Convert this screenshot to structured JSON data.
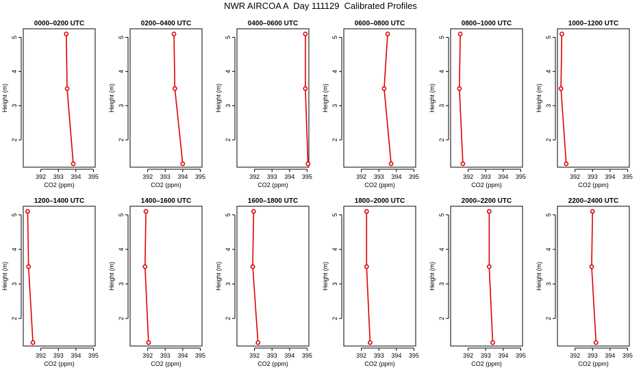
{
  "title": "NWR AIRCOA A  Day 111129  Calibrated Profiles",
  "colors": {
    "series": "#dd0000",
    "axis": "#000000",
    "background": "#ffffff"
  },
  "chart_data": [
    {
      "type": "line",
      "title": "0000–0200 UTC",
      "xlabel": "CO2 (ppm)",
      "ylabel": "Height (m)",
      "xlim": [
        391.0,
        395.1
      ],
      "ylim": [
        1.2,
        5.25
      ],
      "xticks": [
        392,
        393,
        394,
        395
      ],
      "yticks": [
        2,
        3,
        4,
        5
      ],
      "x": [
        393.45,
        393.5,
        393.85
      ],
      "y": [
        5.1,
        3.5,
        1.3
      ]
    },
    {
      "type": "line",
      "title": "0200–0400 UTC",
      "xlabel": "CO2 (ppm)",
      "ylabel": "Height (m)",
      "xlim": [
        391.0,
        395.1
      ],
      "ylim": [
        1.2,
        5.25
      ],
      "xticks": [
        392,
        393,
        394,
        395
      ],
      "yticks": [
        2,
        3,
        4,
        5
      ],
      "x": [
        393.5,
        393.55,
        394.0
      ],
      "y": [
        5.1,
        3.5,
        1.3
      ]
    },
    {
      "type": "line",
      "title": "0400–0600 UTC",
      "xlabel": "CO2 (ppm)",
      "ylabel": "Height (m)",
      "xlim": [
        391.0,
        395.1
      ],
      "ylim": [
        1.2,
        5.25
      ],
      "xticks": [
        392,
        393,
        394,
        395
      ],
      "yticks": [
        2,
        3,
        4,
        5
      ],
      "x": [
        394.9,
        394.9,
        395.05
      ],
      "y": [
        5.1,
        3.5,
        1.3
      ]
    },
    {
      "type": "line",
      "title": "0600–0800 UTC",
      "xlabel": "CO2 (ppm)",
      "ylabel": "Height (m)",
      "xlim": [
        391.0,
        395.1
      ],
      "ylim": [
        1.2,
        5.25
      ],
      "xticks": [
        392,
        393,
        394,
        395
      ],
      "yticks": [
        2,
        3,
        4,
        5
      ],
      "x": [
        393.5,
        393.3,
        393.7
      ],
      "y": [
        5.1,
        3.5,
        1.3
      ]
    },
    {
      "type": "line",
      "title": "0800–1000 UTC",
      "xlabel": "CO2 (ppm)",
      "ylabel": "Height (m)",
      "xlim": [
        391.0,
        395.1
      ],
      "ylim": [
        1.2,
        5.25
      ],
      "xticks": [
        392,
        393,
        394,
        395
      ],
      "yticks": [
        2,
        3,
        4,
        5
      ],
      "x": [
        391.55,
        391.5,
        391.7
      ],
      "y": [
        5.1,
        3.5,
        1.3
      ]
    },
    {
      "type": "line",
      "title": "1000–1200 UTC",
      "xlabel": "CO2 (ppm)",
      "ylabel": "Height (m)",
      "xlim": [
        391.0,
        395.1
      ],
      "ylim": [
        1.2,
        5.25
      ],
      "xticks": [
        392,
        393,
        394,
        395
      ],
      "yticks": [
        2,
        3,
        4,
        5
      ],
      "x": [
        391.25,
        391.2,
        391.5
      ],
      "y": [
        5.1,
        3.5,
        1.3
      ]
    },
    {
      "type": "line",
      "title": "1200–1400 UTC",
      "xlabel": "CO2 (ppm)",
      "ylabel": "Height (m)",
      "xlim": [
        391.0,
        395.1
      ],
      "ylim": [
        1.2,
        5.25
      ],
      "xticks": [
        392,
        393,
        394,
        395
      ],
      "yticks": [
        2,
        3,
        4,
        5
      ],
      "x": [
        391.25,
        391.3,
        391.55
      ],
      "y": [
        5.1,
        3.5,
        1.3
      ]
    },
    {
      "type": "line",
      "title": "1400–1600 UTC",
      "xlabel": "CO2 (ppm)",
      "ylabel": "Height (m)",
      "xlim": [
        391.0,
        395.1
      ],
      "ylim": [
        1.2,
        5.25
      ],
      "xticks": [
        392,
        393,
        394,
        395
      ],
      "yticks": [
        2,
        3,
        4,
        5
      ],
      "x": [
        391.9,
        391.85,
        392.05
      ],
      "y": [
        5.1,
        3.5,
        1.3
      ]
    },
    {
      "type": "line",
      "title": "1600–1800 UTC",
      "xlabel": "CO2 (ppm)",
      "ylabel": "Height (m)",
      "xlim": [
        391.0,
        395.1
      ],
      "ylim": [
        1.2,
        5.25
      ],
      "xticks": [
        392,
        393,
        394,
        395
      ],
      "yticks": [
        2,
        3,
        4,
        5
      ],
      "x": [
        391.95,
        391.9,
        392.2
      ],
      "y": [
        5.1,
        3.5,
        1.3
      ]
    },
    {
      "type": "line",
      "title": "1800–2000 UTC",
      "xlabel": "CO2 (ppm)",
      "ylabel": "Height (m)",
      "xlim": [
        391.0,
        395.1
      ],
      "ylim": [
        1.2,
        5.25
      ],
      "xticks": [
        392,
        393,
        394,
        395
      ],
      "yticks": [
        2,
        3,
        4,
        5
      ],
      "x": [
        392.3,
        392.3,
        392.5
      ],
      "y": [
        5.1,
        3.5,
        1.3
      ]
    },
    {
      "type": "line",
      "title": "2000–2200 UTC",
      "xlabel": "CO2 (ppm)",
      "ylabel": "Height (m)",
      "xlim": [
        391.0,
        395.1
      ],
      "ylim": [
        1.2,
        5.25
      ],
      "xticks": [
        392,
        393,
        394,
        395
      ],
      "yticks": [
        2,
        3,
        4,
        5
      ],
      "x": [
        393.2,
        393.2,
        393.4
      ],
      "y": [
        5.1,
        3.5,
        1.3
      ]
    },
    {
      "type": "line",
      "title": "2200–2400 UTC",
      "xlabel": "CO2 (ppm)",
      "ylabel": "Height (m)",
      "xlim": [
        391.0,
        395.1
      ],
      "ylim": [
        1.2,
        5.25
      ],
      "xticks": [
        392,
        393,
        394,
        395
      ],
      "yticks": [
        2,
        3,
        4,
        5
      ],
      "x": [
        393.0,
        392.95,
        393.2
      ],
      "y": [
        5.1,
        3.5,
        1.3
      ]
    }
  ]
}
